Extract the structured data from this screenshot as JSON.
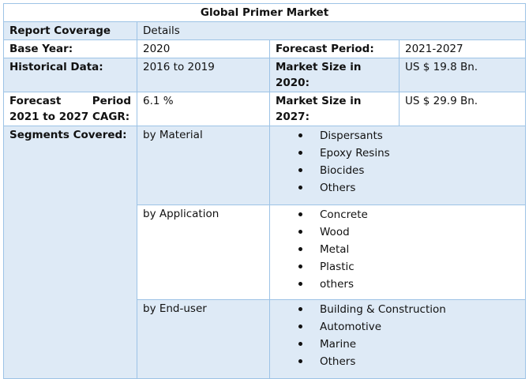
{
  "title": "Global Primer Market",
  "header": {
    "label": "Report Coverage",
    "value": "Details"
  },
  "rows": [
    {
      "l1": "Base Year:",
      "v1": "2020",
      "l2": "Forecast Period:",
      "v2": "2021-2027"
    },
    {
      "l1": "Historical Data:",
      "v1": "2016 to 2019",
      "l2": "Market Size in 2020:",
      "v2": "US $ 19.8 Bn."
    },
    {
      "l1": "Forecast  Period  2021 to 2027 CAGR:",
      "v1": "6.1 %",
      "l2": "Market Size in 2027:",
      "v2": "US $ 29.9 Bn."
    }
  ],
  "segments": {
    "label": "Segments Covered:",
    "groups": [
      {
        "name": "by Material",
        "items": [
          "Dispersants",
          "Epoxy Resins",
          "Biocides",
          "Others"
        ]
      },
      {
        "name": "by Application",
        "items": [
          "Concrete",
          "Wood",
          "Metal",
          "Plastic",
          "others"
        ]
      },
      {
        "name": "by End-user",
        "items": [
          "Building & Construction",
          "Automotive",
          "Marine",
          "Others"
        ]
      }
    ]
  },
  "colors": {
    "border": "#9dc3e6",
    "shade": "#deeaf6"
  }
}
